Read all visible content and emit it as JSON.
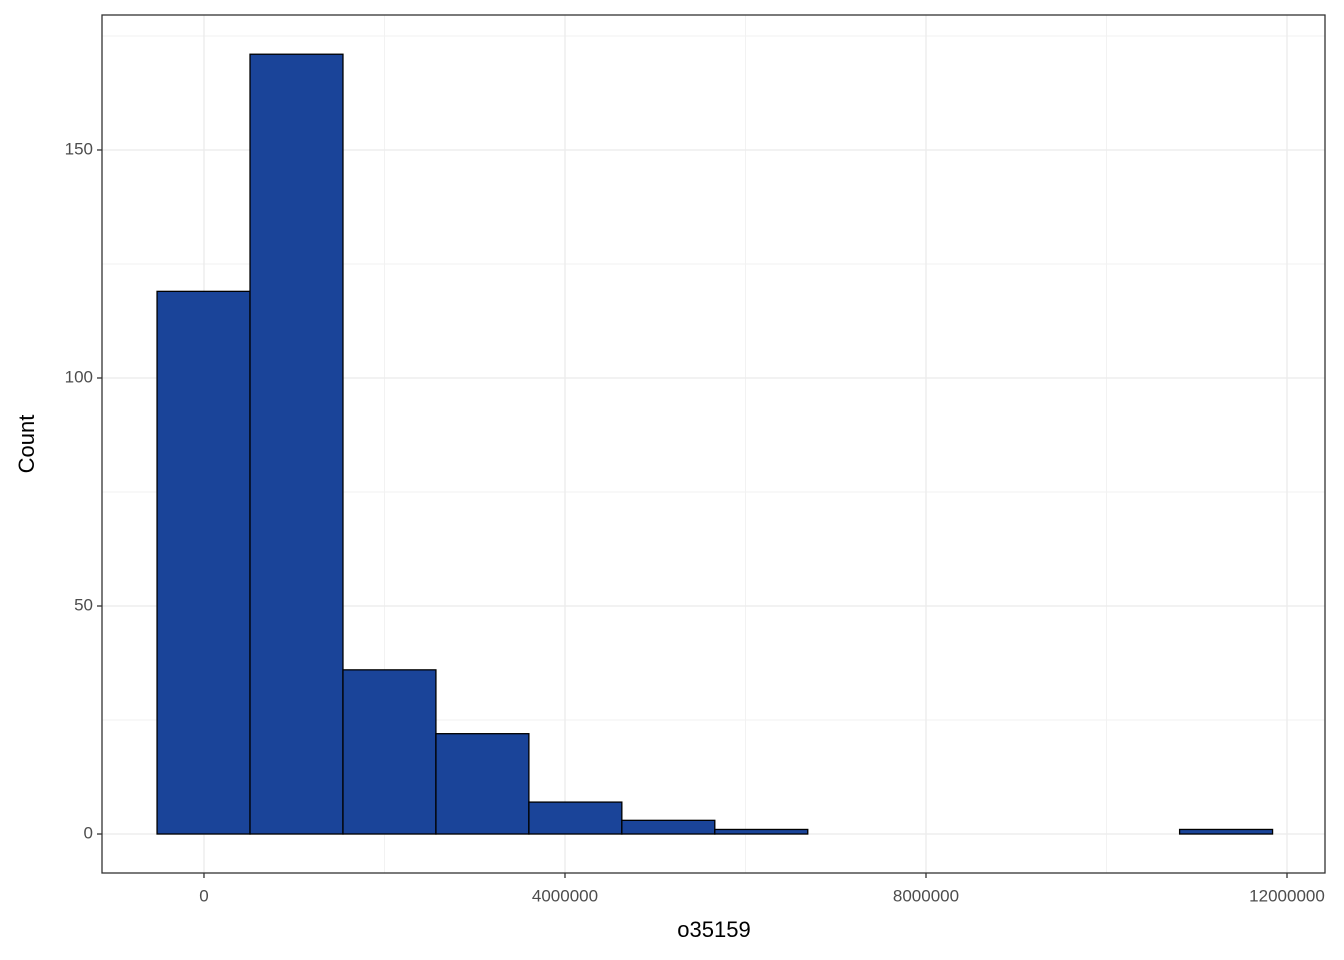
{
  "chart_data": {
    "type": "histogram",
    "x_label": "o35159",
    "y_label": "Count",
    "bins": [
      -520000,
      510000,
      1540000,
      2570000,
      3600000,
      4630000,
      5660000,
      6690000,
      7720000,
      8750000,
      9780000,
      10810000,
      11840000
    ],
    "values": [
      119,
      171,
      36,
      22,
      7,
      3,
      1,
      0,
      0,
      0,
      0,
      1
    ],
    "color": "#1a4499",
    "xlim": [
      -1130000,
      12421000
    ],
    "xticks": [
      0,
      4000000,
      8000000,
      12000000
    ],
    "ylim": [
      -8.55,
      179.6
    ],
    "yticks": [
      0,
      50,
      100,
      150
    ],
    "grid": true
  }
}
